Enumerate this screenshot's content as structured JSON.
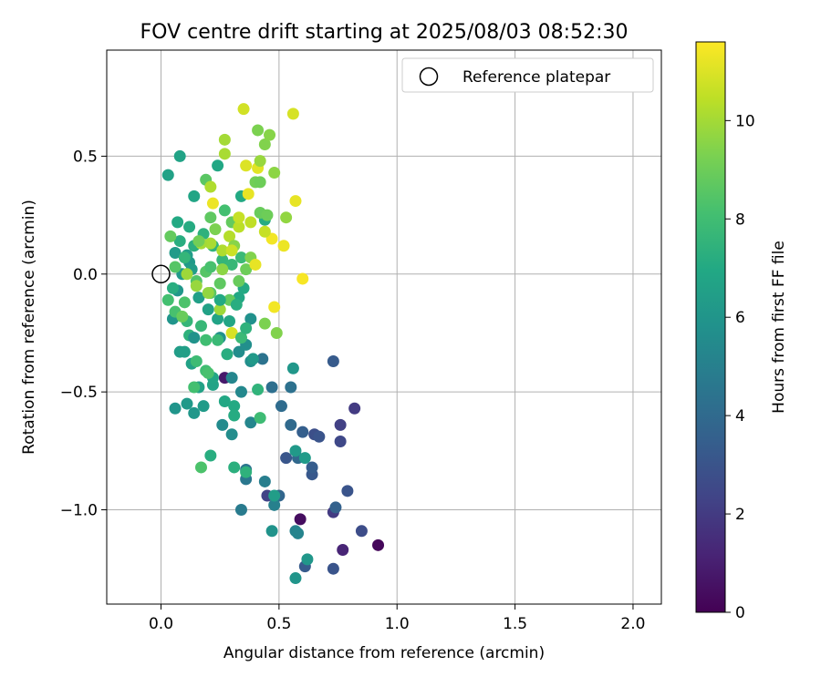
{
  "chart_data": {
    "type": "scatter",
    "title": "FOV centre drift starting at 2025/08/03 08:52:30",
    "xlabel": "Angular distance from reference (arcmin)",
    "ylabel": "Rotation from reference (arcmin)",
    "xlim": [
      -0.23,
      2.12
    ],
    "ylim": [
      -1.4,
      0.95
    ],
    "xticks": [
      {
        "value": 0.0,
        "label": "0.0"
      },
      {
        "value": 0.5,
        "label": "0.5"
      },
      {
        "value": 1.0,
        "label": "1.0"
      },
      {
        "value": 1.5,
        "label": "1.5"
      },
      {
        "value": 2.0,
        "label": "2.0"
      }
    ],
    "yticks": [
      {
        "value": -1.0,
        "label": "−1.0"
      },
      {
        "value": -0.5,
        "label": "−0.5"
      },
      {
        "value": 0.0,
        "label": "0.0"
      },
      {
        "value": 0.5,
        "label": "0.5"
      }
    ],
    "grid": true,
    "legend": {
      "position": "top-right",
      "entries": [
        {
          "label": "Reference platepar",
          "marker": "open-circle"
        }
      ]
    },
    "reference_point": {
      "x": 0.0,
      "y": 0.0
    },
    "colorbar": {
      "label": "Hours from first FF file",
      "colormap": "viridis",
      "range": [
        0,
        11.6
      ],
      "ticks": [
        {
          "value": 0,
          "label": "0"
        },
        {
          "value": 2,
          "label": "2"
        },
        {
          "value": 4,
          "label": "4"
        },
        {
          "value": 6,
          "label": "6"
        },
        {
          "value": 8,
          "label": "8"
        },
        {
          "value": 10,
          "label": "10"
        }
      ]
    },
    "points": [
      {
        "x": 0.92,
        "y": -1.15,
        "c": 0.2
      },
      {
        "x": 0.59,
        "y": -1.04,
        "c": 0.4
      },
      {
        "x": 0.27,
        "y": -0.44,
        "c": 0.8
      },
      {
        "x": 0.77,
        "y": -1.17,
        "c": 1.2
      },
      {
        "x": 0.82,
        "y": -0.57,
        "c": 2.0
      },
      {
        "x": 0.76,
        "y": -0.64,
        "c": 2.2
      },
      {
        "x": 0.76,
        "y": -0.71,
        "c": 2.5
      },
      {
        "x": 0.73,
        "y": -1.01,
        "c": 2.0
      },
      {
        "x": 0.45,
        "y": -0.94,
        "c": 2.3
      },
      {
        "x": 0.85,
        "y": -1.09,
        "c": 2.7
      },
      {
        "x": 0.79,
        "y": -0.92,
        "c": 3.0
      },
      {
        "x": 0.73,
        "y": -1.25,
        "c": 3.0
      },
      {
        "x": 0.73,
        "y": -0.37,
        "c": 3.3
      },
      {
        "x": 0.65,
        "y": -0.68,
        "c": 2.8
      },
      {
        "x": 0.67,
        "y": -0.69,
        "c": 3.0
      },
      {
        "x": 0.64,
        "y": -0.85,
        "c": 3.2
      },
      {
        "x": 0.64,
        "y": -0.82,
        "c": 3.4
      },
      {
        "x": 0.6,
        "y": -0.67,
        "c": 3.5
      },
      {
        "x": 0.53,
        "y": -0.78,
        "c": 3.1
      },
      {
        "x": 0.74,
        "y": -0.99,
        "c": 3.6
      },
      {
        "x": 0.61,
        "y": -1.24,
        "c": 3.3
      },
      {
        "x": 0.5,
        "y": -0.94,
        "c": 3.8
      },
      {
        "x": 0.58,
        "y": -0.78,
        "c": 3.9
      },
      {
        "x": 0.55,
        "y": -0.64,
        "c": 4.0
      },
      {
        "x": 0.51,
        "y": -0.56,
        "c": 4.1
      },
      {
        "x": 0.47,
        "y": -0.48,
        "c": 4.2
      },
      {
        "x": 0.55,
        "y": -0.48,
        "c": 4.3
      },
      {
        "x": 0.43,
        "y": -0.36,
        "c": 4.4
      },
      {
        "x": 0.36,
        "y": -0.83,
        "c": 4.5
      },
      {
        "x": 0.36,
        "y": -0.87,
        "c": 4.6
      },
      {
        "x": 0.34,
        "y": -1.0,
        "c": 4.8
      },
      {
        "x": 0.44,
        "y": -0.88,
        "c": 4.9
      },
      {
        "x": 0.48,
        "y": -0.98,
        "c": 5.0
      },
      {
        "x": 0.57,
        "y": -1.09,
        "c": 5.1
      },
      {
        "x": 0.58,
        "y": -1.1,
        "c": 5.2
      },
      {
        "x": 0.38,
        "y": -0.63,
        "c": 5.3
      },
      {
        "x": 0.3,
        "y": -0.44,
        "c": 5.3
      },
      {
        "x": 0.34,
        "y": -0.5,
        "c": 5.4
      },
      {
        "x": 0.26,
        "y": -0.64,
        "c": 5.5
      },
      {
        "x": 0.3,
        "y": -0.68,
        "c": 5.6
      },
      {
        "x": 0.38,
        "y": -0.37,
        "c": 5.7
      },
      {
        "x": 0.38,
        "y": -0.19,
        "c": 5.8
      },
      {
        "x": 0.47,
        "y": -1.09,
        "c": 5.9
      },
      {
        "x": 0.57,
        "y": -1.29,
        "c": 6.0
      },
      {
        "x": 0.62,
        "y": -1.21,
        "c": 6.1
      },
      {
        "x": 0.56,
        "y": -0.4,
        "c": 6.1
      },
      {
        "x": 0.57,
        "y": -0.75,
        "c": 6.2
      },
      {
        "x": 0.61,
        "y": -0.78,
        "c": 6.3
      },
      {
        "x": 0.48,
        "y": -0.94,
        "c": 6.4
      },
      {
        "x": 0.33,
        "y": -0.33,
        "c": 5.6
      },
      {
        "x": 0.36,
        "y": -0.3,
        "c": 5.7
      },
      {
        "x": 0.25,
        "y": -0.27,
        "c": 5.8
      },
      {
        "x": 0.06,
        "y": -0.57,
        "c": 6.0
      },
      {
        "x": 0.14,
        "y": -0.59,
        "c": 6.1
      },
      {
        "x": 0.11,
        "y": -0.55,
        "c": 6.2
      },
      {
        "x": 0.18,
        "y": -0.56,
        "c": 6.3
      },
      {
        "x": 0.08,
        "y": -0.33,
        "c": 6.4
      },
      {
        "x": 0.1,
        "y": -0.33,
        "c": 6.5
      },
      {
        "x": 0.13,
        "y": -0.38,
        "c": 6.6
      },
      {
        "x": 0.16,
        "y": -0.48,
        "c": 6.6
      },
      {
        "x": 0.22,
        "y": -0.47,
        "c": 6.7
      },
      {
        "x": 0.22,
        "y": -0.44,
        "c": 6.8
      },
      {
        "x": 0.27,
        "y": -0.54,
        "c": 6.9
      },
      {
        "x": 0.31,
        "y": -0.56,
        "c": 7.0
      },
      {
        "x": 0.31,
        "y": -0.6,
        "c": 7.1
      },
      {
        "x": 0.21,
        "y": -0.77,
        "c": 7.2
      },
      {
        "x": 0.31,
        "y": -0.82,
        "c": 7.3
      },
      {
        "x": 0.36,
        "y": -0.84,
        "c": 7.4
      },
      {
        "x": 0.41,
        "y": -0.49,
        "c": 7.5
      },
      {
        "x": 0.42,
        "y": -0.61,
        "c": 7.9
      },
      {
        "x": 0.17,
        "y": -0.82,
        "c": 8.3
      },
      {
        "x": 0.05,
        "y": -0.19,
        "c": 6.0
      },
      {
        "x": 0.07,
        "y": -0.07,
        "c": 6.1
      },
      {
        "x": 0.09,
        "y": 0.0,
        "c": 6.2
      },
      {
        "x": 0.12,
        "y": 0.05,
        "c": 6.2
      },
      {
        "x": 0.06,
        "y": 0.09,
        "c": 6.3
      },
      {
        "x": 0.11,
        "y": 0.08,
        "c": 6.4
      },
      {
        "x": 0.13,
        "y": 0.02,
        "c": 6.4
      },
      {
        "x": 0.16,
        "y": -0.1,
        "c": 6.5
      },
      {
        "x": 0.2,
        "y": -0.15,
        "c": 6.6
      },
      {
        "x": 0.24,
        "y": -0.19,
        "c": 6.7
      },
      {
        "x": 0.29,
        "y": -0.2,
        "c": 6.8
      },
      {
        "x": 0.33,
        "y": -0.1,
        "c": 6.9
      },
      {
        "x": 0.35,
        "y": -0.06,
        "c": 7.0
      },
      {
        "x": 0.03,
        "y": 0.42,
        "c": 6.6
      },
      {
        "x": 0.08,
        "y": 0.5,
        "c": 6.7
      },
      {
        "x": 0.14,
        "y": 0.33,
        "c": 6.8
      },
      {
        "x": 0.24,
        "y": 0.46,
        "c": 6.9
      },
      {
        "x": 0.34,
        "y": 0.33,
        "c": 7.0
      },
      {
        "x": 0.44,
        "y": 0.23,
        "c": 7.1
      },
      {
        "x": 0.07,
        "y": 0.22,
        "c": 7.0
      },
      {
        "x": 0.12,
        "y": 0.2,
        "c": 7.1
      },
      {
        "x": 0.08,
        "y": 0.14,
        "c": 7.2
      },
      {
        "x": 0.14,
        "y": 0.12,
        "c": 7.3
      },
      {
        "x": 0.18,
        "y": 0.17,
        "c": 7.4
      },
      {
        "x": 0.22,
        "y": 0.12,
        "c": 7.5
      },
      {
        "x": 0.26,
        "y": 0.06,
        "c": 7.6
      },
      {
        "x": 0.3,
        "y": 0.04,
        "c": 7.7
      },
      {
        "x": 0.34,
        "y": 0.07,
        "c": 7.8
      },
      {
        "x": 0.11,
        "y": -0.2,
        "c": 7.6
      },
      {
        "x": 0.17,
        "y": -0.22,
        "c": 7.7
      },
      {
        "x": 0.24,
        "y": -0.28,
        "c": 7.8
      },
      {
        "x": 0.15,
        "y": -0.37,
        "c": 7.9
      },
      {
        "x": 0.19,
        "y": -0.41,
        "c": 8.0
      },
      {
        "x": 0.14,
        "y": -0.48,
        "c": 8.1
      },
      {
        "x": 0.2,
        "y": -0.42,
        "c": 8.2
      },
      {
        "x": 0.03,
        "y": -0.11,
        "c": 8.1
      },
      {
        "x": 0.06,
        "y": -0.16,
        "c": 8.2
      },
      {
        "x": 0.1,
        "y": -0.12,
        "c": 8.3
      },
      {
        "x": 0.15,
        "y": -0.03,
        "c": 8.4
      },
      {
        "x": 0.19,
        "y": 0.01,
        "c": 8.5
      },
      {
        "x": 0.21,
        "y": -0.08,
        "c": 8.6
      },
      {
        "x": 0.25,
        "y": -0.04,
        "c": 8.7
      },
      {
        "x": 0.29,
        "y": -0.11,
        "c": 8.8
      },
      {
        "x": 0.33,
        "y": -0.03,
        "c": 8.9
      },
      {
        "x": 0.36,
        "y": 0.02,
        "c": 9.0
      },
      {
        "x": 0.04,
        "y": 0.16,
        "c": 8.8
      },
      {
        "x": 0.19,
        "y": 0.4,
        "c": 8.6
      },
      {
        "x": 0.21,
        "y": 0.24,
        "c": 8.7
      },
      {
        "x": 0.3,
        "y": 0.22,
        "c": 8.8
      },
      {
        "x": 0.42,
        "y": 0.26,
        "c": 8.9
      },
      {
        "x": 0.45,
        "y": 0.25,
        "c": 9.0
      },
      {
        "x": 0.41,
        "y": 0.61,
        "c": 9.3
      },
      {
        "x": 0.44,
        "y": 0.55,
        "c": 9.4
      },
      {
        "x": 0.46,
        "y": 0.59,
        "c": 9.5
      },
      {
        "x": 0.48,
        "y": 0.43,
        "c": 9.6
      },
      {
        "x": 0.53,
        "y": 0.24,
        "c": 9.7
      },
      {
        "x": 0.44,
        "y": -0.21,
        "c": 9.3
      },
      {
        "x": 0.49,
        "y": -0.25,
        "c": 9.4
      },
      {
        "x": 0.27,
        "y": 0.57,
        "c": 10.0
      },
      {
        "x": 0.27,
        "y": 0.51,
        "c": 10.1
      },
      {
        "x": 0.21,
        "y": 0.37,
        "c": 10.2
      },
      {
        "x": 0.35,
        "y": 0.7,
        "c": 10.8
      },
      {
        "x": 0.56,
        "y": 0.68,
        "c": 10.9
      },
      {
        "x": 0.36,
        "y": 0.46,
        "c": 11.0
      },
      {
        "x": 0.41,
        "y": 0.45,
        "c": 11.1
      },
      {
        "x": 0.37,
        "y": 0.34,
        "c": 11.2
      },
      {
        "x": 0.22,
        "y": 0.3,
        "c": 11.3
      },
      {
        "x": 0.57,
        "y": 0.31,
        "c": 11.2
      },
      {
        "x": 0.52,
        "y": 0.12,
        "c": 11.3
      },
      {
        "x": 0.47,
        "y": 0.15,
        "c": 11.4
      },
      {
        "x": 0.44,
        "y": 0.18,
        "c": 10.6
      },
      {
        "x": 0.38,
        "y": 0.22,
        "c": 10.5
      },
      {
        "x": 0.33,
        "y": 0.2,
        "c": 10.4
      },
      {
        "x": 0.29,
        "y": 0.16,
        "c": 10.3
      },
      {
        "x": 0.26,
        "y": 0.1,
        "c": 10.2
      },
      {
        "x": 0.21,
        "y": 0.13,
        "c": 10.1
      },
      {
        "x": 0.17,
        "y": 0.13,
        "c": 10.0
      },
      {
        "x": 0.11,
        "y": 0.0,
        "c": 9.9
      },
      {
        "x": 0.15,
        "y": -0.05,
        "c": 9.8
      },
      {
        "x": 0.2,
        "y": -0.08,
        "c": 9.7
      },
      {
        "x": 0.26,
        "y": 0.02,
        "c": 9.6
      },
      {
        "x": 0.31,
        "y": 0.12,
        "c": 9.5
      },
      {
        "x": 0.38,
        "y": 0.07,
        "c": 9.4
      },
      {
        "x": 0.4,
        "y": 0.04,
        "c": 11.2
      },
      {
        "x": 0.6,
        "y": -0.02,
        "c": 11.5
      },
      {
        "x": 0.48,
        "y": -0.14,
        "c": 11.4
      },
      {
        "x": 0.3,
        "y": -0.25,
        "c": 10.9
      },
      {
        "x": 0.25,
        "y": -0.15,
        "c": 9.9
      },
      {
        "x": 0.16,
        "y": 0.14,
        "c": 9.1
      },
      {
        "x": 0.09,
        "y": -0.18,
        "c": 8.9
      },
      {
        "x": 0.34,
        "y": -0.27,
        "c": 7.8
      },
      {
        "x": 0.36,
        "y": -0.23,
        "c": 7.4
      },
      {
        "x": 0.39,
        "y": -0.36,
        "c": 6.2
      },
      {
        "x": 0.32,
        "y": -0.13,
        "c": 7.2
      },
      {
        "x": 0.12,
        "y": -0.26,
        "c": 7.4
      },
      {
        "x": 0.06,
        "y": 0.03,
        "c": 8.5
      },
      {
        "x": 0.23,
        "y": 0.19,
        "c": 9.3
      },
      {
        "x": 0.28,
        "y": -0.34,
        "c": 7.2
      },
      {
        "x": 0.19,
        "y": -0.28,
        "c": 8.0
      },
      {
        "x": 0.1,
        "y": 0.07,
        "c": 7.6
      },
      {
        "x": 0.21,
        "y": 0.03,
        "c": 8.2
      },
      {
        "x": 0.25,
        "y": -0.11,
        "c": 7.0
      },
      {
        "x": 0.4,
        "y": 0.39,
        "c": 9.1
      },
      {
        "x": 0.42,
        "y": 0.39,
        "c": 9.0
      },
      {
        "x": 0.33,
        "y": 0.24,
        "c": 10.6
      },
      {
        "x": 0.3,
        "y": 0.1,
        "c": 10.7
      },
      {
        "x": 0.27,
        "y": 0.27,
        "c": 8.1
      },
      {
        "x": 0.05,
        "y": -0.06,
        "c": 7.2
      },
      {
        "x": 0.14,
        "y": -0.27,
        "c": 5.9
      },
      {
        "x": 0.42,
        "y": 0.48,
        "c": 9.8
      }
    ]
  }
}
